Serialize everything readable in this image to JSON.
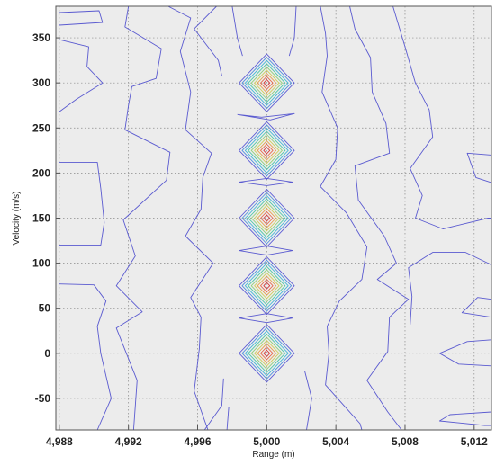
{
  "chart_data": {
    "type": "contour",
    "title": "",
    "xlabel": "Range (m)",
    "ylabel": "Velocity (m/s)",
    "xlim": [
      4987.8,
      5013.0
    ],
    "ylim": [
      -85,
      385
    ],
    "x_ticks": [
      4988,
      4992,
      4996,
      5000,
      5004,
      5008,
      5012
    ],
    "x_tick_labels": [
      "4,988",
      "4,992",
      "4,996",
      "5,000",
      "5,004",
      "5,008",
      "5,012"
    ],
    "y_ticks": [
      -50,
      0,
      50,
      100,
      150,
      200,
      250,
      300,
      350
    ],
    "y_tick_labels": [
      "-50",
      "0",
      "50",
      "100",
      "150",
      "200",
      "250",
      "300",
      "350"
    ],
    "grid": true,
    "background": "#ececec",
    "peaks": [
      {
        "x": 5000,
        "y": 0
      },
      {
        "x": 5000,
        "y": 75
      },
      {
        "x": 5000,
        "y": 150
      },
      {
        "x": 5000,
        "y": 225
      },
      {
        "x": 5000,
        "y": 300
      }
    ],
    "peak_half_width_x": 1.6,
    "peak_half_height_y": 32,
    "levels": 9,
    "colormap": [
      "#5c5cd6",
      "#4f8fe0",
      "#45b8d8",
      "#4cc8a8",
      "#8fd07a",
      "#d0cf5a",
      "#e8a04c",
      "#e86a4a",
      "#d83a3a"
    ],
    "outer_contour_color": "#5a5ad0",
    "background_contours": [
      [
        [
          4988.0,
          378
        ],
        [
          4990.3,
          380
        ],
        [
          4990.5,
          367
        ],
        [
          4988.0,
          364
        ]
      ],
      [
        [
          4988.0,
          348
        ],
        [
          4989.7,
          340
        ],
        [
          4989.6,
          318
        ],
        [
          4990.5,
          300
        ],
        [
          4989.0,
          282
        ],
        [
          4988.0,
          268
        ]
      ],
      [
        [
          4988.0,
          212
        ],
        [
          4990.2,
          212
        ],
        [
          4990.4,
          183
        ],
        [
          4990.6,
          145
        ],
        [
          4990.4,
          120
        ],
        [
          4988.0,
          120
        ]
      ],
      [
        [
          4988.0,
          77
        ],
        [
          4990.0,
          76
        ],
        [
          4990.7,
          58
        ],
        [
          4990.2,
          30
        ],
        [
          4990.4,
          0
        ],
        [
          4991.0,
          -50
        ],
        [
          4990.2,
          -85
        ]
      ],
      [
        [
          4992.0,
          385
        ],
        [
          4991.8,
          362
        ],
        [
          4993.9,
          338
        ],
        [
          4993.6,
          305
        ],
        [
          4992.2,
          296
        ],
        [
          4992.0,
          275
        ],
        [
          4991.8,
          248
        ],
        [
          4994.4,
          223
        ],
        [
          4994.2,
          192
        ],
        [
          4991.7,
          148
        ],
        [
          4992.4,
          108
        ],
        [
          4991.3,
          75
        ],
        [
          4992.8,
          46
        ],
        [
          4991.3,
          28
        ],
        [
          4992.5,
          -30
        ],
        [
          4992.3,
          -85
        ]
      ],
      [
        [
          4994.3,
          385
        ],
        [
          4995.6,
          372
        ],
        [
          4995.0,
          335
        ],
        [
          4995.6,
          290
        ],
        [
          4995.3,
          248
        ],
        [
          4996.8,
          222
        ],
        [
          4996.3,
          195
        ],
        [
          4996.2,
          160
        ],
        [
          4995.3,
          130
        ],
        [
          4996.9,
          100
        ],
        [
          4995.6,
          62
        ],
        [
          4996.2,
          40
        ],
        [
          4996.1,
          5
        ],
        [
          4995.8,
          -42
        ],
        [
          4996.6,
          -85
        ]
      ],
      [
        [
          4997.1,
          385
        ],
        [
          4995.8,
          360
        ],
        [
          4997.2,
          325
        ],
        [
          4997.4,
          308
        ]
      ],
      [
        [
          4996.4,
          -85
        ],
        [
          4997.4,
          -58
        ],
        [
          4997.5,
          -28
        ]
      ],
      [
        [
          4997.8,
          -60
        ],
        [
          4997.7,
          -85
        ]
      ],
      [
        [
          4998.0,
          385
        ],
        [
          4998.3,
          350
        ],
        [
          4998.6,
          330
        ]
      ],
      [
        [
          5001.3,
          330
        ],
        [
          5001.6,
          350
        ],
        [
          5001.7,
          385
        ]
      ],
      [
        [
          5002.3,
          -85
        ],
        [
          5002.6,
          -50
        ],
        [
          5002.2,
          -20
        ]
      ],
      [
        [
          5003.1,
          385
        ],
        [
          5003.4,
          355
        ],
        [
          5003.5,
          330
        ],
        [
          5003.2,
          290
        ],
        [
          5004.1,
          250
        ],
        [
          5004.0,
          215
        ],
        [
          5003.1,
          185
        ],
        [
          5004.6,
          156
        ],
        [
          5005.8,
          118
        ],
        [
          5005.5,
          82
        ],
        [
          5004.2,
          58
        ],
        [
          5003.5,
          30
        ],
        [
          5003.6,
          0
        ],
        [
          5003.4,
          -35
        ],
        [
          5005.4,
          -78
        ],
        [
          5005.5,
          -85
        ]
      ],
      [
        [
          5004.8,
          385
        ],
        [
          5005.1,
          360
        ],
        [
          5006.0,
          328
        ],
        [
          5006.1,
          290
        ],
        [
          5006.9,
          255
        ],
        [
          5007.1,
          222
        ],
        [
          5005.1,
          208
        ],
        [
          5005.3,
          170
        ],
        [
          5006.8,
          130
        ],
        [
          5007.5,
          100
        ],
        [
          5006.4,
          82
        ],
        [
          5008.2,
          60
        ],
        [
          5007.1,
          40
        ],
        [
          5007.0,
          2
        ],
        [
          5005.8,
          -30
        ],
        [
          5007.0,
          -65
        ],
        [
          5007.8,
          -85
        ]
      ],
      [
        [
          5007.3,
          385
        ],
        [
          5008.0,
          340
        ],
        [
          5008.6,
          300
        ],
        [
          5009.4,
          270
        ],
        [
          5009.6,
          240
        ],
        [
          5008.3,
          205
        ],
        [
          5009.0,
          175
        ],
        [
          5008.6,
          150
        ],
        [
          5010.2,
          138
        ],
        [
          5012.8,
          150
        ],
        [
          5013.0,
          150
        ]
      ],
      [
        [
          5008.3,
          32
        ],
        [
          5008.4,
          63
        ],
        [
          5008.2,
          95
        ],
        [
          5009.6,
          112
        ],
        [
          5011.5,
          112
        ],
        [
          5012.8,
          100
        ],
        [
          5013.0,
          98
        ]
      ],
      [
        [
          5013.0,
          220
        ],
        [
          5011.6,
          222
        ],
        [
          5012.1,
          195
        ],
        [
          5012.9,
          190
        ],
        [
          5013.0,
          190
        ]
      ],
      [
        [
          5013.0,
          60
        ],
        [
          5012.2,
          62
        ],
        [
          5011.3,
          45
        ],
        [
          5013.0,
          40
        ]
      ],
      [
        [
          5013.0,
          15
        ],
        [
          5011.6,
          13
        ],
        [
          5010.0,
          0
        ],
        [
          5011.1,
          -12
        ],
        [
          5013.0,
          -14
        ]
      ],
      [
        [
          5013.0,
          -65
        ],
        [
          5010.6,
          -68
        ],
        [
          5010.0,
          -75
        ],
        [
          5012.6,
          -80
        ],
        [
          5013.0,
          -80
        ]
      ],
      [
        [
          4998.3,
          265
        ],
        [
          4999.7,
          262
        ],
        [
          5001.6,
          266
        ],
        [
          5000.2,
          259
        ],
        [
          4998.3,
          265
        ]
      ],
      [
        [
          4998.4,
          190
        ],
        [
          5000.0,
          186
        ],
        [
          5001.5,
          190
        ],
        [
          5000.0,
          194
        ],
        [
          4998.4,
          190
        ]
      ],
      [
        [
          4998.4,
          114
        ],
        [
          5000.0,
          109
        ],
        [
          5001.5,
          114
        ],
        [
          5000.0,
          119
        ],
        [
          4998.4,
          114
        ]
      ],
      [
        [
          4998.4,
          39
        ],
        [
          5000.0,
          34
        ],
        [
          5001.5,
          39
        ],
        [
          5000.0,
          44
        ],
        [
          4998.4,
          39
        ]
      ]
    ]
  }
}
